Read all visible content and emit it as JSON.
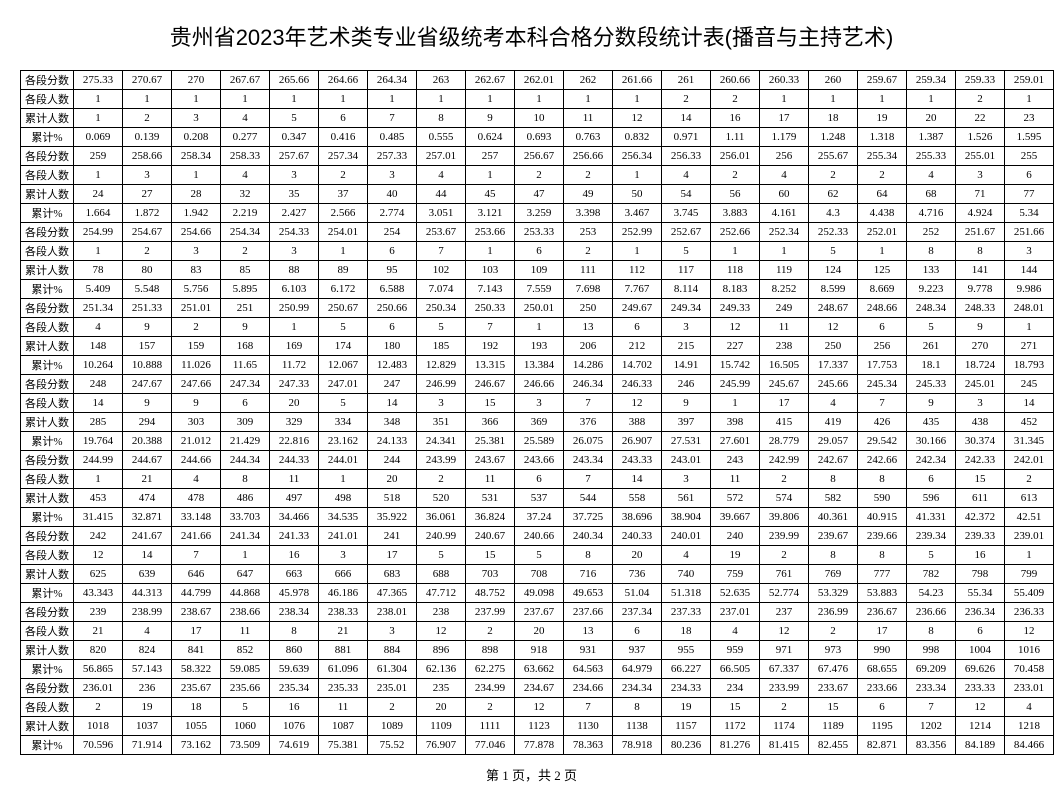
{
  "title": "贵州省2023年艺术类专业省级统考本科合格分数段统计表(播音与主持艺术)",
  "footer": "第 1 页，共 2 页",
  "row_labels": [
    "各段分数",
    "各段人数",
    "累计人数",
    "累计%"
  ],
  "blocks": [
    {
      "score": [
        "275.33",
        "270.67",
        "270",
        "267.67",
        "265.66",
        "264.66",
        "264.34",
        "263",
        "262.67",
        "262.01",
        "262",
        "261.66",
        "261",
        "260.66",
        "260.33",
        "260",
        "259.67",
        "259.34",
        "259.33",
        "259.01"
      ],
      "seg": [
        "1",
        "1",
        "1",
        "1",
        "1",
        "1",
        "1",
        "1",
        "1",
        "1",
        "1",
        "1",
        "2",
        "2",
        "1",
        "1",
        "1",
        "1",
        "2",
        "1"
      ],
      "cum": [
        "1",
        "2",
        "3",
        "4",
        "5",
        "6",
        "7",
        "8",
        "9",
        "10",
        "11",
        "12",
        "14",
        "16",
        "17",
        "18",
        "19",
        "20",
        "22",
        "23"
      ],
      "pct": [
        "0.069",
        "0.139",
        "0.208",
        "0.277",
        "0.347",
        "0.416",
        "0.485",
        "0.555",
        "0.624",
        "0.693",
        "0.763",
        "0.832",
        "0.971",
        "1.11",
        "1.179",
        "1.248",
        "1.318",
        "1.387",
        "1.526",
        "1.595"
      ]
    },
    {
      "score": [
        "259",
        "258.66",
        "258.34",
        "258.33",
        "257.67",
        "257.34",
        "257.33",
        "257.01",
        "257",
        "256.67",
        "256.66",
        "256.34",
        "256.33",
        "256.01",
        "256",
        "255.67",
        "255.34",
        "255.33",
        "255.01",
        "255"
      ],
      "seg": [
        "1",
        "3",
        "1",
        "4",
        "3",
        "2",
        "3",
        "4",
        "1",
        "2",
        "2",
        "1",
        "4",
        "2",
        "4",
        "2",
        "2",
        "4",
        "3",
        "6"
      ],
      "cum": [
        "24",
        "27",
        "28",
        "32",
        "35",
        "37",
        "40",
        "44",
        "45",
        "47",
        "49",
        "50",
        "54",
        "56",
        "60",
        "62",
        "64",
        "68",
        "71",
        "77"
      ],
      "pct": [
        "1.664",
        "1.872",
        "1.942",
        "2.219",
        "2.427",
        "2.566",
        "2.774",
        "3.051",
        "3.121",
        "3.259",
        "3.398",
        "3.467",
        "3.745",
        "3.883",
        "4.161",
        "4.3",
        "4.438",
        "4.716",
        "4.924",
        "5.34"
      ]
    },
    {
      "score": [
        "254.99",
        "254.67",
        "254.66",
        "254.34",
        "254.33",
        "254.01",
        "254",
        "253.67",
        "253.66",
        "253.33",
        "253",
        "252.99",
        "252.67",
        "252.66",
        "252.34",
        "252.33",
        "252.01",
        "252",
        "251.67",
        "251.66"
      ],
      "seg": [
        "1",
        "2",
        "3",
        "2",
        "3",
        "1",
        "6",
        "7",
        "1",
        "6",
        "2",
        "1",
        "5",
        "1",
        "1",
        "5",
        "1",
        "8",
        "8",
        "3"
      ],
      "cum": [
        "78",
        "80",
        "83",
        "85",
        "88",
        "89",
        "95",
        "102",
        "103",
        "109",
        "111",
        "112",
        "117",
        "118",
        "119",
        "124",
        "125",
        "133",
        "141",
        "144"
      ],
      "pct": [
        "5.409",
        "5.548",
        "5.756",
        "5.895",
        "6.103",
        "6.172",
        "6.588",
        "7.074",
        "7.143",
        "7.559",
        "7.698",
        "7.767",
        "8.114",
        "8.183",
        "8.252",
        "8.599",
        "8.669",
        "9.223",
        "9.778",
        "9.986"
      ]
    },
    {
      "score": [
        "251.34",
        "251.33",
        "251.01",
        "251",
        "250.99",
        "250.67",
        "250.66",
        "250.34",
        "250.33",
        "250.01",
        "250",
        "249.67",
        "249.34",
        "249.33",
        "249",
        "248.67",
        "248.66",
        "248.34",
        "248.33",
        "248.01"
      ],
      "seg": [
        "4",
        "9",
        "2",
        "9",
        "1",
        "5",
        "6",
        "5",
        "7",
        "1",
        "13",
        "6",
        "3",
        "12",
        "11",
        "12",
        "6",
        "5",
        "9",
        "1"
      ],
      "cum": [
        "148",
        "157",
        "159",
        "168",
        "169",
        "174",
        "180",
        "185",
        "192",
        "193",
        "206",
        "212",
        "215",
        "227",
        "238",
        "250",
        "256",
        "261",
        "270",
        "271"
      ],
      "pct": [
        "10.264",
        "10.888",
        "11.026",
        "11.65",
        "11.72",
        "12.067",
        "12.483",
        "12.829",
        "13.315",
        "13.384",
        "14.286",
        "14.702",
        "14.91",
        "15.742",
        "16.505",
        "17.337",
        "17.753",
        "18.1",
        "18.724",
        "18.793"
      ]
    },
    {
      "score": [
        "248",
        "247.67",
        "247.66",
        "247.34",
        "247.33",
        "247.01",
        "247",
        "246.99",
        "246.67",
        "246.66",
        "246.34",
        "246.33",
        "246",
        "245.99",
        "245.67",
        "245.66",
        "245.34",
        "245.33",
        "245.01",
        "245"
      ],
      "seg": [
        "14",
        "9",
        "9",
        "6",
        "20",
        "5",
        "14",
        "3",
        "15",
        "3",
        "7",
        "12",
        "9",
        "1",
        "17",
        "4",
        "7",
        "9",
        "3",
        "14"
      ],
      "cum": [
        "285",
        "294",
        "303",
        "309",
        "329",
        "334",
        "348",
        "351",
        "366",
        "369",
        "376",
        "388",
        "397",
        "398",
        "415",
        "419",
        "426",
        "435",
        "438",
        "452"
      ],
      "pct": [
        "19.764",
        "20.388",
        "21.012",
        "21.429",
        "22.816",
        "23.162",
        "24.133",
        "24.341",
        "25.381",
        "25.589",
        "26.075",
        "26.907",
        "27.531",
        "27.601",
        "28.779",
        "29.057",
        "29.542",
        "30.166",
        "30.374",
        "31.345"
      ]
    },
    {
      "score": [
        "244.99",
        "244.67",
        "244.66",
        "244.34",
        "244.33",
        "244.01",
        "244",
        "243.99",
        "243.67",
        "243.66",
        "243.34",
        "243.33",
        "243.01",
        "243",
        "242.99",
        "242.67",
        "242.66",
        "242.34",
        "242.33",
        "242.01"
      ],
      "seg": [
        "1",
        "21",
        "4",
        "8",
        "11",
        "1",
        "20",
        "2",
        "11",
        "6",
        "7",
        "14",
        "3",
        "11",
        "2",
        "8",
        "8",
        "6",
        "15",
        "2"
      ],
      "cum": [
        "453",
        "474",
        "478",
        "486",
        "497",
        "498",
        "518",
        "520",
        "531",
        "537",
        "544",
        "558",
        "561",
        "572",
        "574",
        "582",
        "590",
        "596",
        "611",
        "613"
      ],
      "pct": [
        "31.415",
        "32.871",
        "33.148",
        "33.703",
        "34.466",
        "34.535",
        "35.922",
        "36.061",
        "36.824",
        "37.24",
        "37.725",
        "38.696",
        "38.904",
        "39.667",
        "39.806",
        "40.361",
        "40.915",
        "41.331",
        "42.372",
        "42.51"
      ]
    },
    {
      "score": [
        "242",
        "241.67",
        "241.66",
        "241.34",
        "241.33",
        "241.01",
        "241",
        "240.99",
        "240.67",
        "240.66",
        "240.34",
        "240.33",
        "240.01",
        "240",
        "239.99",
        "239.67",
        "239.66",
        "239.34",
        "239.33",
        "239.01"
      ],
      "seg": [
        "12",
        "14",
        "7",
        "1",
        "16",
        "3",
        "17",
        "5",
        "15",
        "5",
        "8",
        "20",
        "4",
        "19",
        "2",
        "8",
        "8",
        "5",
        "16",
        "1"
      ],
      "cum": [
        "625",
        "639",
        "646",
        "647",
        "663",
        "666",
        "683",
        "688",
        "703",
        "708",
        "716",
        "736",
        "740",
        "759",
        "761",
        "769",
        "777",
        "782",
        "798",
        "799"
      ],
      "pct": [
        "43.343",
        "44.313",
        "44.799",
        "44.868",
        "45.978",
        "46.186",
        "47.365",
        "47.712",
        "48.752",
        "49.098",
        "49.653",
        "51.04",
        "51.318",
        "52.635",
        "52.774",
        "53.329",
        "53.883",
        "54.23",
        "55.34",
        "55.409"
      ]
    },
    {
      "score": [
        "239",
        "238.99",
        "238.67",
        "238.66",
        "238.34",
        "238.33",
        "238.01",
        "238",
        "237.99",
        "237.67",
        "237.66",
        "237.34",
        "237.33",
        "237.01",
        "237",
        "236.99",
        "236.67",
        "236.66",
        "236.34",
        "236.33"
      ],
      "seg": [
        "21",
        "4",
        "17",
        "11",
        "8",
        "21",
        "3",
        "12",
        "2",
        "20",
        "13",
        "6",
        "18",
        "4",
        "12",
        "2",
        "17",
        "8",
        "6",
        "12"
      ],
      "cum": [
        "820",
        "824",
        "841",
        "852",
        "860",
        "881",
        "884",
        "896",
        "898",
        "918",
        "931",
        "937",
        "955",
        "959",
        "971",
        "973",
        "990",
        "998",
        "1004",
        "1016"
      ],
      "pct": [
        "56.865",
        "57.143",
        "58.322",
        "59.085",
        "59.639",
        "61.096",
        "61.304",
        "62.136",
        "62.275",
        "63.662",
        "64.563",
        "64.979",
        "66.227",
        "66.505",
        "67.337",
        "67.476",
        "68.655",
        "69.209",
        "69.626",
        "70.458"
      ]
    },
    {
      "score": [
        "236.01",
        "236",
        "235.67",
        "235.66",
        "235.34",
        "235.33",
        "235.01",
        "235",
        "234.99",
        "234.67",
        "234.66",
        "234.34",
        "234.33",
        "234",
        "233.99",
        "233.67",
        "233.66",
        "233.34",
        "233.33",
        "233.01"
      ],
      "seg": [
        "2",
        "19",
        "18",
        "5",
        "16",
        "11",
        "2",
        "20",
        "2",
        "12",
        "7",
        "8",
        "19",
        "15",
        "2",
        "15",
        "6",
        "7",
        "12",
        "4"
      ],
      "cum": [
        "1018",
        "1037",
        "1055",
        "1060",
        "1076",
        "1087",
        "1089",
        "1109",
        "1111",
        "1123",
        "1130",
        "1138",
        "1157",
        "1172",
        "1174",
        "1189",
        "1195",
        "1202",
        "1214",
        "1218"
      ],
      "pct": [
        "70.596",
        "71.914",
        "73.162",
        "73.509",
        "74.619",
        "75.381",
        "75.52",
        "76.907",
        "77.046",
        "77.878",
        "78.363",
        "78.918",
        "80.236",
        "81.276",
        "81.415",
        "82.455",
        "82.871",
        "83.356",
        "84.189",
        "84.466"
      ]
    }
  ]
}
